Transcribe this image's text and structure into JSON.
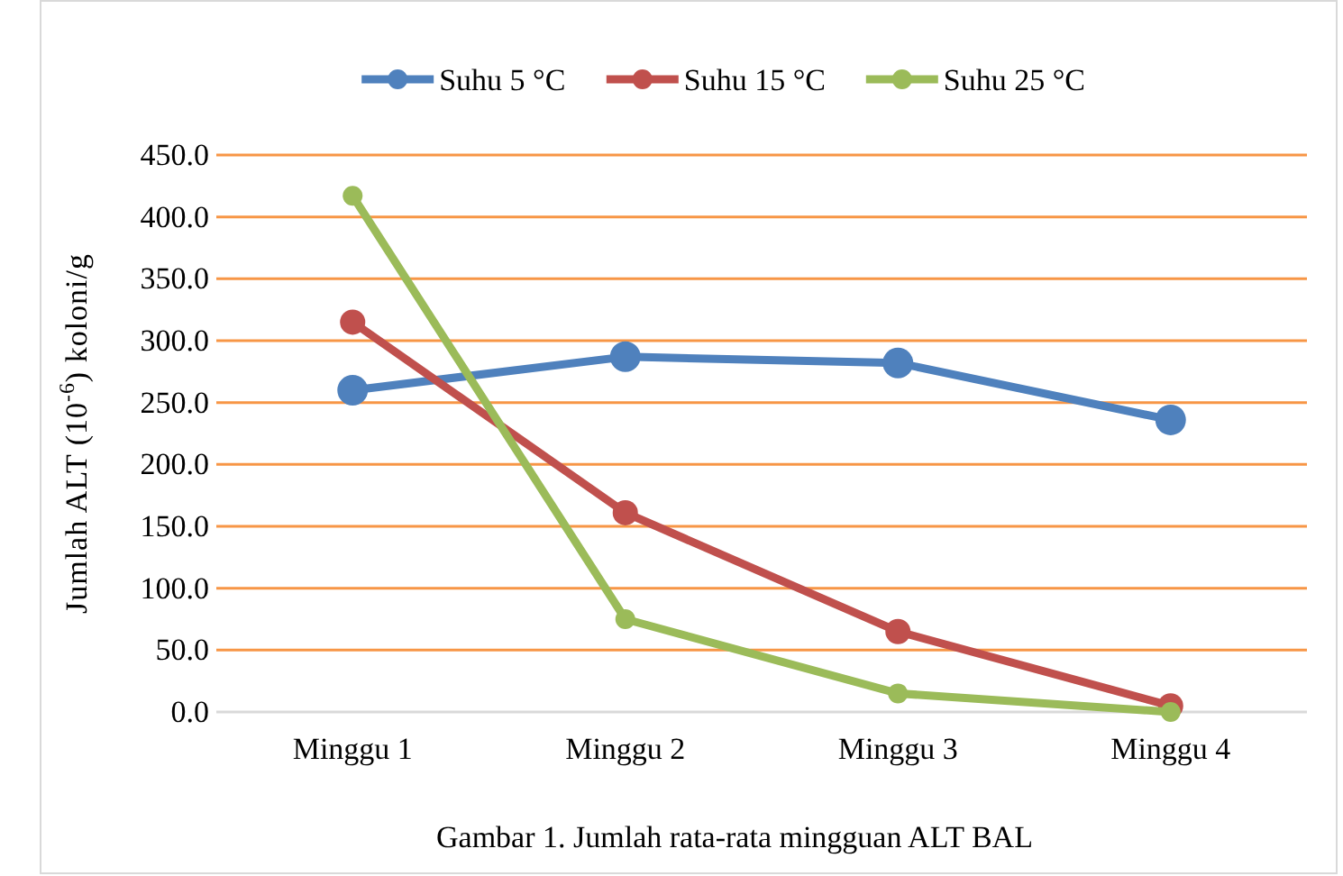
{
  "chart_data": {
    "type": "line",
    "ylabel": "Jumlah ALT (10$^{-6}$) koloni/g",
    "annotations": [
      "Gambar 1. Jumlah rata-rata mingguan ALT BAL"
    ],
    "categories": [
      "Minggu 1",
      "Minggu 2",
      "Minggu 3",
      "Minggu 4"
    ],
    "series": [
      {
        "name": "Suhu 5 °C",
        "color": "#4f81bd",
        "values": [
          260,
          287,
          282,
          236
        ]
      },
      {
        "name": "Suhu 15 °C",
        "color": "#c0504d",
        "values": [
          315,
          161,
          65,
          5
        ]
      },
      {
        "name": "Suhu 25 °C",
        "color": "#9bbb59",
        "values": [
          417,
          75,
          15,
          0
        ]
      }
    ],
    "ylim": [
      0,
      450
    ],
    "yticks": [
      {
        "value": 0,
        "label": "0.0"
      },
      {
        "value": 50,
        "label": "50.0"
      },
      {
        "value": 100,
        "label": "100.0"
      },
      {
        "value": 150,
        "label": "150.0"
      },
      {
        "value": 200,
        "label": "200.0"
      },
      {
        "value": 250,
        "label": "250.0"
      },
      {
        "value": 300,
        "label": "300.0"
      },
      {
        "value": 350,
        "label": "350.0"
      },
      {
        "value": 400,
        "label": "400.0"
      },
      {
        "value": 450,
        "label": "450.0"
      }
    ],
    "grid": "y",
    "legend": "top",
    "marker": "circle",
    "line_style": "solid"
  }
}
